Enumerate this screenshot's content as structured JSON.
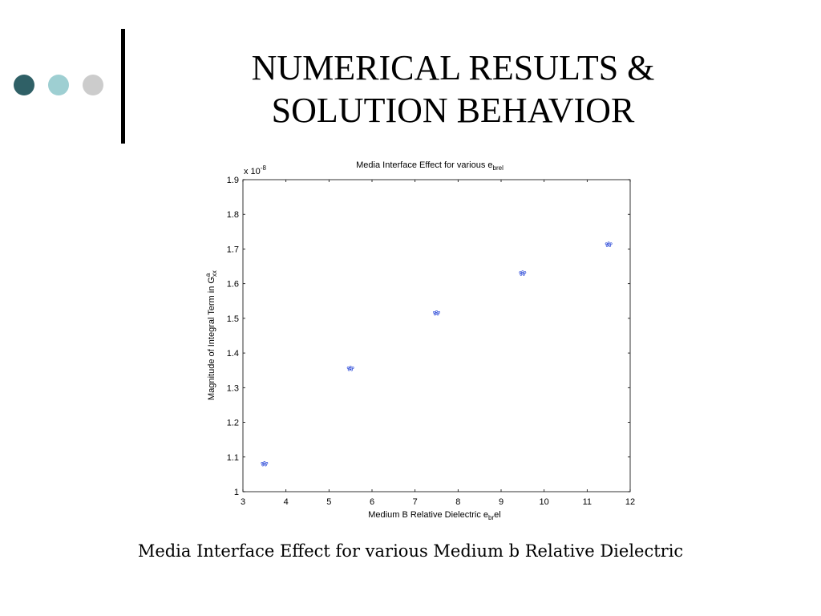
{
  "slide": {
    "title_line1": "NUMERICAL RESULTS &",
    "title_line2": "SOLUTION BEHAVIOR",
    "caption": "Media Interface Effect for various Medium b Relative Dielectric",
    "bullet_colors": [
      "#2f6066",
      "#9ecfd2",
      "#cccccc"
    ]
  },
  "chart_data": {
    "type": "scatter",
    "title_main": "Media Interface Effect for various e",
    "title_sub": "brel",
    "xlabel_main": "Medium B Relative Dielectric e",
    "xlabel_sub": "br",
    "xlabel_tail": "el",
    "ylabel_main": "Magnitude of Integral Term in G",
    "ylabel_sub": "xx",
    "ylabel_sup": "a",
    "y_exponent_base": "x 10",
    "y_exponent_power": "-8",
    "xlim": [
      3,
      12
    ],
    "ylim": [
      1,
      1.9
    ],
    "xticks": [
      "3",
      "4",
      "5",
      "6",
      "7",
      "8",
      "9",
      "10",
      "11",
      "12"
    ],
    "yticks": [
      "1",
      "1.1",
      "1.2",
      "1.3",
      "1.4",
      "1.5",
      "1.6",
      "1.7",
      "1.8",
      "1.9"
    ],
    "grid": false,
    "marker_color": "#1f3fd6",
    "series": [
      {
        "x": [
          3.5,
          5.5,
          7.5,
          9.5,
          11.5
        ],
        "y": [
          1.08,
          1.355,
          1.515,
          1.63,
          1.713
        ]
      }
    ]
  }
}
